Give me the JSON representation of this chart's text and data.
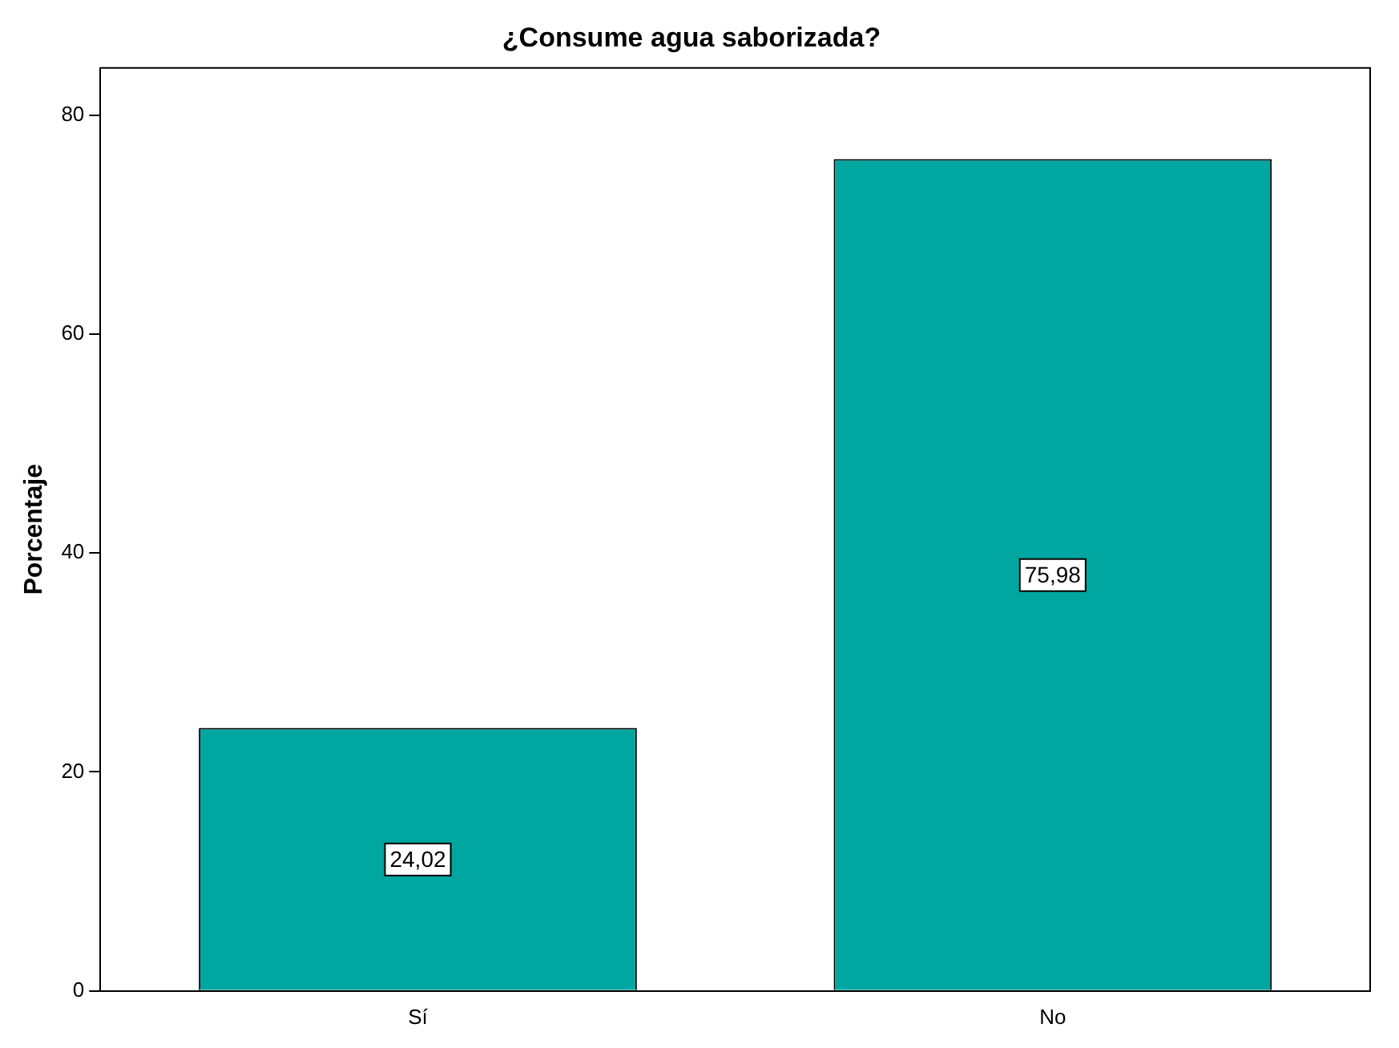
{
  "chart_data": {
    "type": "bar",
    "title": "¿Consume agua saborizada?",
    "ylabel": "Porcentaje",
    "categories": [
      "Sí",
      "No"
    ],
    "values": [
      24.02,
      75.98
    ],
    "value_labels": [
      "24,02",
      "75,98"
    ],
    "color": "#00a6a0",
    "ylim": [
      0,
      84.3
    ],
    "yticks": [
      0,
      20,
      40,
      60,
      80
    ],
    "grid": false,
    "legend": false
  }
}
